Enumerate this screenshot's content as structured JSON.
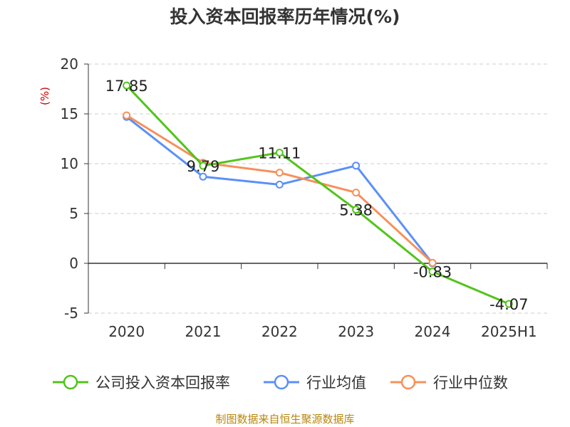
{
  "title": "投入资本回报率历年情况(%)",
  "source": "制图数据来自恒生聚源数据库",
  "chart_data": {
    "type": "line",
    "title": "投入资本回报率历年情况(%)",
    "ylabel": "(%)",
    "xlabel": "",
    "categories": [
      "2020",
      "2021",
      "2022",
      "2023",
      "2024",
      "2025H1"
    ],
    "ylim": [
      -5,
      20
    ],
    "yticks": [
      20,
      15,
      10,
      5,
      0,
      -5
    ],
    "grid": true,
    "legend_position": "bottom",
    "series": [
      {
        "name": "公司投入资本回报率",
        "color": "#52c41a",
        "values": [
          17.85,
          9.79,
          11.11,
          5.38,
          -0.83,
          -4.07
        ],
        "labels": [
          "17.85",
          "9.79",
          "11.11",
          "5.38",
          "-0.83",
          "-4.07"
        ]
      },
      {
        "name": "行业均值",
        "color": "#5b8ff9",
        "values": [
          14.7,
          8.7,
          7.9,
          9.8,
          0.0,
          null
        ]
      },
      {
        "name": "行业中位数",
        "color": "#f6905a",
        "values": [
          14.85,
          10.1,
          9.1,
          7.1,
          0.05,
          null
        ]
      }
    ]
  }
}
